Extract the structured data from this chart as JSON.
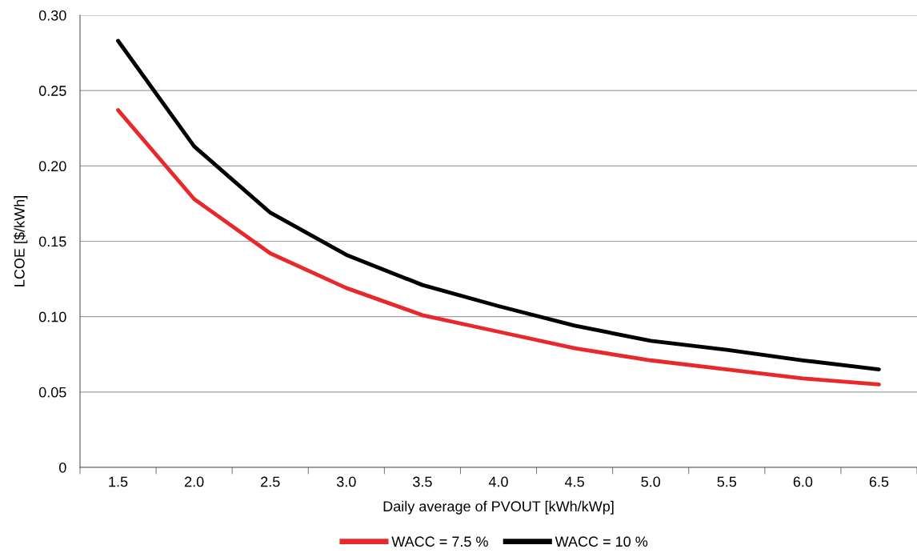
{
  "chart_data": {
    "type": "line",
    "xlabel": "Daily average of PVOUT [kWh/kWp]",
    "ylabel": "LCOE [$/kWh]",
    "categories": [
      "1.5",
      "2.0",
      "2.5",
      "3.0",
      "3.5",
      "4.0",
      "4.5",
      "5.0",
      "5.5",
      "6.0",
      "6.5"
    ],
    "series": [
      {
        "name": "WACC = 7.5 %",
        "color": "#e8282b",
        "values": [
          0.237,
          0.178,
          0.142,
          0.119,
          0.101,
          0.09,
          0.079,
          0.071,
          0.065,
          0.059,
          0.055
        ]
      },
      {
        "name": "WACC = 10 %",
        "color": "#000000",
        "values": [
          0.283,
          0.213,
          0.169,
          0.141,
          0.121,
          0.107,
          0.094,
          0.084,
          0.078,
          0.071,
          0.065
        ]
      }
    ],
    "ylim": [
      0,
      0.3
    ],
    "yticks": [
      {
        "value": 0,
        "label": "0"
      },
      {
        "value": 0.05,
        "label": "0.05"
      },
      {
        "value": 0.1,
        "label": "0.10"
      },
      {
        "value": 0.15,
        "label": "0.15"
      },
      {
        "value": 0.2,
        "label": "0.20"
      },
      {
        "value": 0.25,
        "label": "0.25"
      },
      {
        "value": 0.3,
        "label": "0.30"
      }
    ],
    "grid": "y",
    "legend": "bottom",
    "marker": "none",
    "line_style": "solid"
  }
}
